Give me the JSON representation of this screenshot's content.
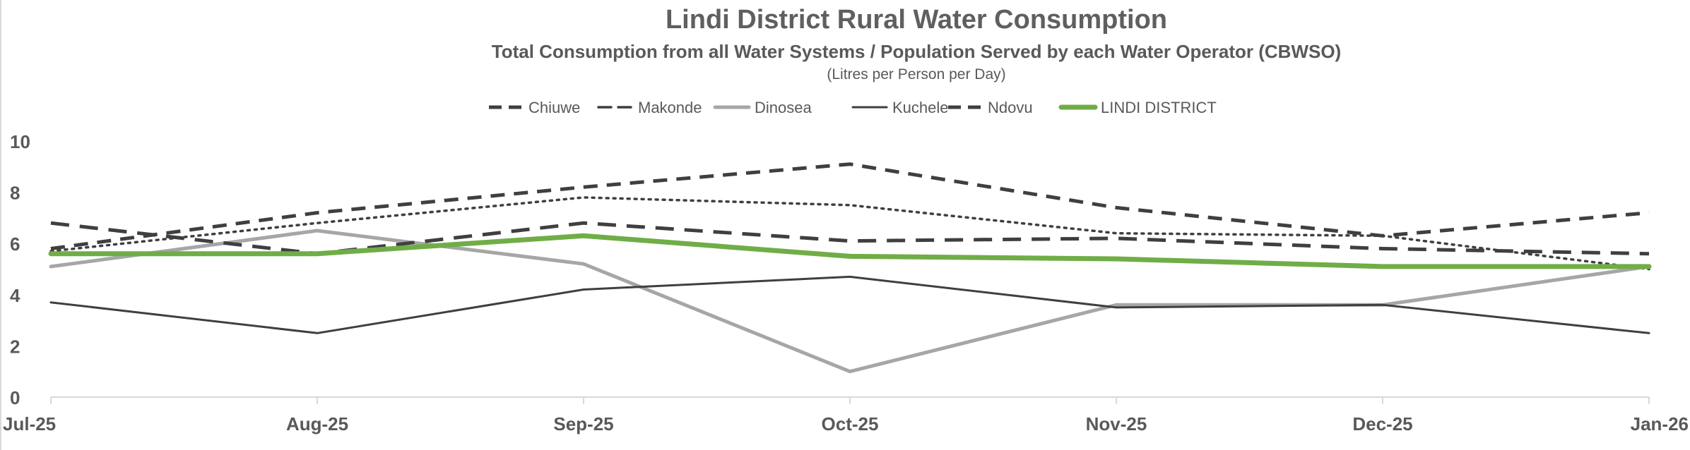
{
  "chart_data": {
    "type": "line",
    "title": "Lindi District Rural Water Consumption",
    "subtitle": "Total Consumption from all Water Systems / Population Served by each Water Operator (CBWSO)",
    "note": "(Litres per Person per Day)",
    "xlabel": "",
    "ylabel": "",
    "ylim": [
      0,
      10
    ],
    "yticks": [
      0,
      2,
      4,
      6,
      8,
      10
    ],
    "grid": false,
    "legend_position": "top",
    "categories": [
      "Jul-25",
      "Aug-25",
      "Sep-25",
      "Oct-25",
      "Nov-25",
      "Dec-25",
      "Jan-26"
    ],
    "series": [
      {
        "name": "Chiuwe",
        "values": [
          5.8,
          7.2,
          8.2,
          9.1,
          7.4,
          6.3,
          7.2
        ],
        "color": "#3f3f3f",
        "style": "dashed"
      },
      {
        "name": "Makonde",
        "values": [
          5.7,
          6.8,
          7.8,
          7.5,
          6.4,
          6.3,
          5.0
        ],
        "color": "#3f3f3f",
        "style": "dotted"
      },
      {
        "name": "Dinosea",
        "values": [
          5.1,
          6.5,
          5.2,
          1.0,
          3.6,
          3.6,
          5.1
        ],
        "color": "#a6a6a6",
        "style": "solid"
      },
      {
        "name": "Kuchele",
        "values": [
          3.7,
          2.5,
          4.2,
          4.7,
          3.5,
          3.6,
          2.5
        ],
        "color": "#3f3f3f",
        "style": "thin"
      },
      {
        "name": "Ndovu",
        "values": [
          6.8,
          5.6,
          6.8,
          6.1,
          6.2,
          5.8,
          5.6
        ],
        "color": "#3f3f3f",
        "style": "longdash"
      },
      {
        "name": "LINDI DISTRICT",
        "values": [
          5.6,
          5.6,
          6.3,
          5.5,
          5.4,
          5.1,
          5.1
        ],
        "color": "#70ad47",
        "style": "thick"
      }
    ]
  }
}
